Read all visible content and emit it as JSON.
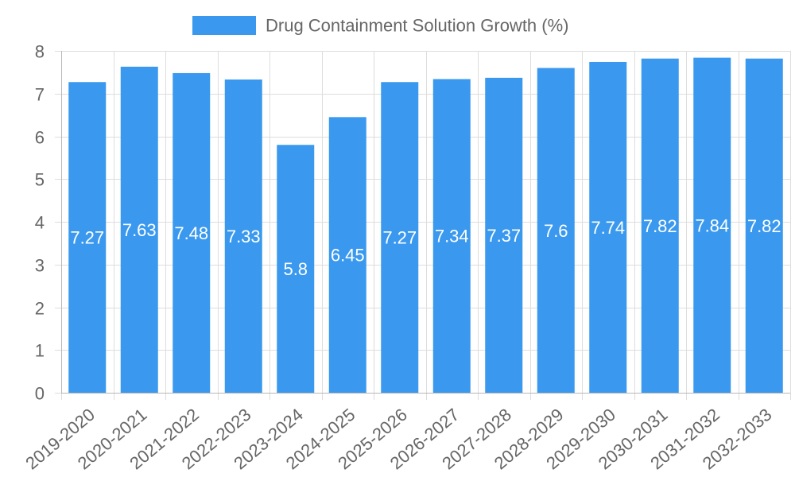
{
  "chart_data": {
    "type": "bar",
    "title": "",
    "xlabel": "",
    "ylabel": "",
    "legend": "top-center",
    "grid": true,
    "ylim": [
      0,
      8
    ],
    "y_ticks": [
      "0",
      "1",
      "2",
      "3",
      "4",
      "5",
      "6",
      "7",
      "8"
    ],
    "categories": [
      "2019-2020",
      "2020-2021",
      "2021-2022",
      "2022-2023",
      "2023-2024",
      "2024-2025",
      "2025-2026",
      "2026-2027",
      "2027-2028",
      "2028-2029",
      "2029-2030",
      "2030-2031",
      "2031-2032",
      "2032-2033"
    ],
    "series": [
      {
        "name": "Drug Containment Solution Growth (%)",
        "color": "#3a99ee",
        "values": [
          7.27,
          7.63,
          7.48,
          7.33,
          5.8,
          6.45,
          7.27,
          7.34,
          7.37,
          7.6,
          7.74,
          7.82,
          7.84,
          7.82
        ],
        "labels": [
          "7.27",
          "7.63",
          "7.48",
          "7.33",
          "5.8",
          "6.45",
          "7.27",
          "7.34",
          "7.37",
          "7.6",
          "7.74",
          "7.82",
          "7.84",
          "7.82"
        ]
      }
    ],
    "colors": {
      "grid": "#dddddd",
      "axis": "#b8b8b8",
      "text": "#666666",
      "data_label": "#ffffff"
    }
  }
}
